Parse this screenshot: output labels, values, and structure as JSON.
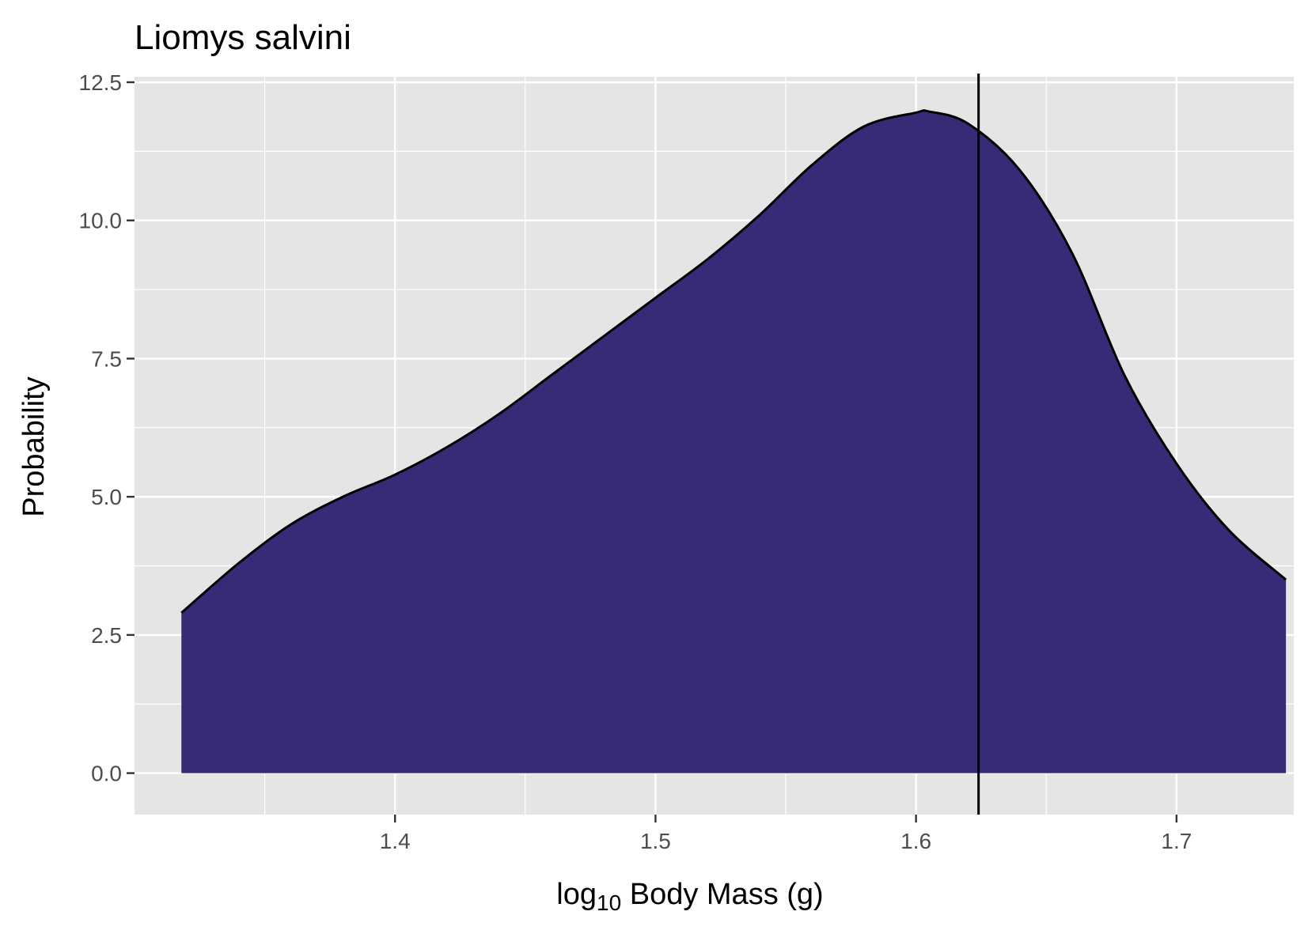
{
  "chart_data": {
    "type": "area",
    "title": "Liomys salvini",
    "xlabel": {
      "prefix": "log",
      "subscript": "10",
      "suffix": " Body Mass (g)"
    },
    "ylabel": "Probability",
    "xlim": [
      1.3,
      1.745
    ],
    "ylim": [
      -0.75,
      12.6
    ],
    "x_ticks": [
      1.4,
      1.5,
      1.6,
      1.7
    ],
    "x_tick_labels": [
      "1.4",
      "1.5",
      "1.6",
      "1.7"
    ],
    "y_ticks": [
      0,
      2.5,
      5,
      7.5,
      10,
      12.5
    ],
    "y_tick_labels": [
      "0.0",
      "2.5",
      "5.0",
      "7.5",
      "10.0",
      "12.5"
    ],
    "grid": true,
    "legend": "none",
    "series": [
      {
        "x": [
          1.318,
          1.34,
          1.36,
          1.38,
          1.4,
          1.42,
          1.44,
          1.46,
          1.48,
          1.5,
          1.52,
          1.54,
          1.56,
          1.58,
          1.6,
          1.605,
          1.62,
          1.64,
          1.66,
          1.68,
          1.7,
          1.72,
          1.742
        ],
        "values": [
          2.9,
          3.8,
          4.5,
          5.0,
          5.4,
          5.9,
          6.5,
          7.2,
          7.9,
          8.6,
          9.3,
          10.1,
          11.0,
          11.7,
          11.95,
          11.97,
          11.75,
          10.9,
          9.4,
          7.2,
          5.6,
          4.4,
          3.5
        ]
      }
    ],
    "vline": {
      "x": 1.624
    },
    "colors": {
      "fill": "#372a77",
      "outline": "#000000",
      "panel": "#e5e5e5",
      "grid": "#ffffff",
      "tick_text": "#4d4d4d"
    }
  }
}
